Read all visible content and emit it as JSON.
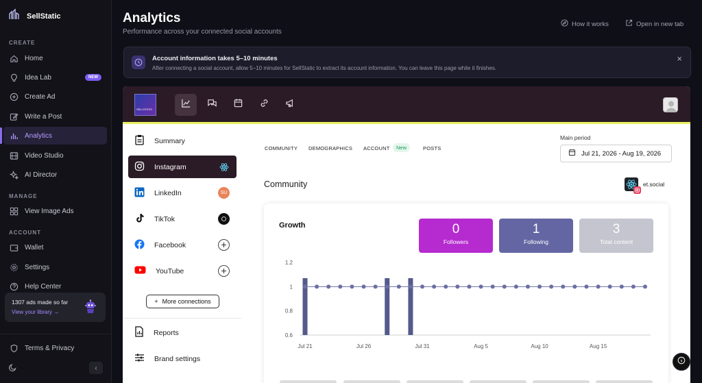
{
  "app": {
    "name": "SellStatic"
  },
  "sidebar": {
    "sections": {
      "create": "CREATE",
      "manage": "MANAGE",
      "account": "ACCOUNT"
    },
    "items": [
      {
        "label": "Home",
        "icon": "home-icon"
      },
      {
        "label": "Idea Lab",
        "icon": "lightbulb-icon",
        "badge": "NEW"
      },
      {
        "label": "Create Ad",
        "icon": "plus-circle-icon"
      },
      {
        "label": "Write a Post",
        "icon": "edit-icon"
      },
      {
        "label": "Analytics",
        "icon": "bar-chart-icon",
        "active": true
      },
      {
        "label": "Video Studio",
        "icon": "film-icon"
      },
      {
        "label": "AI Director",
        "icon": "sparkle-icon"
      },
      {
        "label": "View Image Ads",
        "icon": "grid-icon"
      },
      {
        "label": "Wallet",
        "icon": "wallet-icon"
      },
      {
        "label": "Settings",
        "icon": "gear-icon"
      },
      {
        "label": "Help Center",
        "icon": "help-icon"
      },
      {
        "label": "Terms & Privacy",
        "icon": "shield-icon"
      }
    ],
    "ads_card": {
      "title": "1307 ads made so far",
      "link": "View your library →"
    }
  },
  "header": {
    "title": "Analytics",
    "subtitle": "Performance across your connected social accounts",
    "how_it_works": "How it works",
    "open_new_tab": "Open in new tab"
  },
  "alert": {
    "title": "Account information takes 5–10 minutes",
    "text": "After connecting a social account, allow 5–10 minutes for SellStatic to extract its account information. You can leave this page while it finishes."
  },
  "panel": {
    "logo_text": "SELLSTATIC",
    "platforms": [
      {
        "label": "Summary"
      },
      {
        "label": "Instagram"
      },
      {
        "label": "LinkedIn",
        "badge": "SU"
      },
      {
        "label": "TikTok"
      },
      {
        "label": "Facebook"
      },
      {
        "label": "YouTube"
      }
    ],
    "more_connections": "More connections",
    "reports": "Reports",
    "brand_settings": "Brand settings",
    "tabs": [
      "COMMUNITY",
      "DEMOGRAPHICS",
      "ACCOUNT",
      "POSTS"
    ],
    "tab_new_badge": "New",
    "main_period_label": "Main period",
    "main_period_value": "Jul 21, 2026 - Aug 19, 2026",
    "section_title": "Community",
    "account_name": "et.social",
    "growth_title": "Growth",
    "stats": [
      {
        "value": "0",
        "label": "Followers",
        "color": "#b52bcf"
      },
      {
        "value": "1",
        "label": "Following",
        "color": "#6466a3"
      },
      {
        "value": "3",
        "label": "Total content",
        "color": "#c5c5cf"
      }
    ]
  },
  "chart_data": {
    "type": "bar",
    "y_ticks": [
      "1.2",
      "1",
      "0.8",
      "0.6"
    ],
    "ylim": [
      0.6,
      1.2
    ],
    "x_ticks": [
      "Jul 21",
      "Jul 26",
      "Jul 31",
      "Aug 5",
      "Aug 10",
      "Aug 15"
    ],
    "x": [
      "Jul 21",
      "Jul 22",
      "Jul 23",
      "Jul 24",
      "Jul 25",
      "Jul 26",
      "Jul 27",
      "Jul 28",
      "Jul 29",
      "Jul 30",
      "Jul 31",
      "Aug 1",
      "Aug 2",
      "Aug 3",
      "Aug 4",
      "Aug 5",
      "Aug 6",
      "Aug 7",
      "Aug 8",
      "Aug 9",
      "Aug 10",
      "Aug 11",
      "Aug 12",
      "Aug 13",
      "Aug 14",
      "Aug 15",
      "Aug 16",
      "Aug 17",
      "Aug 18",
      "Aug 19"
    ],
    "series": [
      {
        "type": "bar",
        "values": [
          1.07,
          0,
          0,
          0,
          0,
          0,
          0,
          1.07,
          0,
          1.07,
          0,
          0,
          0,
          0,
          0,
          0,
          0,
          0,
          0,
          0,
          0,
          0,
          0,
          0,
          0,
          0,
          0,
          0,
          0,
          0
        ],
        "color": "#555a8c"
      },
      {
        "type": "line",
        "values": [
          1,
          1,
          1,
          1,
          1,
          1,
          1,
          1,
          1,
          1,
          1,
          1,
          1,
          1,
          1,
          1,
          1,
          1,
          1,
          1,
          1,
          1,
          1,
          1,
          1,
          1,
          1,
          1,
          1,
          1
        ],
        "color": "#6b6fa3"
      }
    ]
  }
}
